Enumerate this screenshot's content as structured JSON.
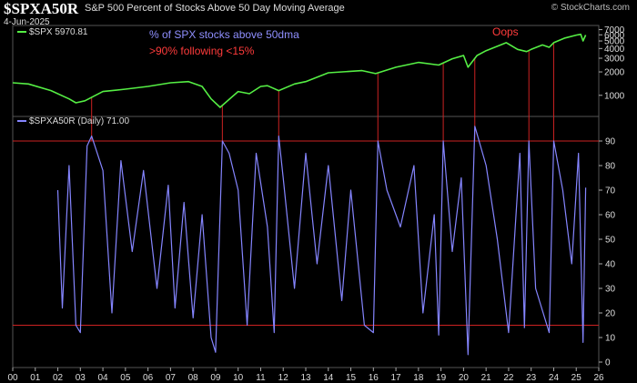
{
  "header": {
    "symbol": "$SPXA50R",
    "description": "S&P 500 Percent of Stocks Above 50 Day Moving Average",
    "date": "4-Jun-2025",
    "watermark": "© StockCharts.com"
  },
  "annotations": {
    "blue": "% of SPX stocks above 50dma",
    "red": ">90% following <15%",
    "oops": "Oops"
  },
  "chart_data": [
    {
      "type": "line",
      "panel": "top",
      "legend": "$SPX 5970.81",
      "color": "#55ee44",
      "y_scale": "log",
      "yticks": [
        1000,
        2000,
        3000,
        4000,
        5000,
        6000,
        7000
      ],
      "ytick_labels": [
        "1000",
        "2000",
        "3000",
        "4000",
        "5000",
        "6000",
        "7000"
      ],
      "x": [
        2000.0,
        2000.7,
        2001.7,
        2002.5,
        2002.8,
        2003.2,
        2004.0,
        2005.0,
        2006.0,
        2007.0,
        2007.8,
        2008.4,
        2008.8,
        2009.2,
        2010.0,
        2010.5,
        2011.0,
        2011.3,
        2011.8,
        2012.5,
        2013.0,
        2014.0,
        2015.5,
        2016.1,
        2017.0,
        2018.0,
        2018.9,
        2019.5,
        2020.0,
        2020.2,
        2020.6,
        2021.0,
        2021.9,
        2022.4,
        2022.8,
        2023.0,
        2023.5,
        2023.8,
        2024.0,
        2024.5,
        2025.0,
        2025.2,
        2025.3,
        2025.42
      ],
      "y": [
        1450,
        1400,
        1150,
        900,
        800,
        850,
        1120,
        1200,
        1300,
        1450,
        1500,
        1300,
        900,
        700,
        1120,
        1050,
        1300,
        1330,
        1150,
        1400,
        1500,
        1950,
        2080,
        1900,
        2300,
        2650,
        2450,
        2950,
        3250,
        2300,
        3250,
        3750,
        4750,
        3900,
        3650,
        3900,
        4450,
        4150,
        4750,
        5450,
        5950,
        6100,
        5000,
        5970
      ]
    },
    {
      "type": "line",
      "panel": "bottom",
      "legend": "$SPXA50R (Daily) 71.00",
      "color": "#8585ff",
      "ylim": [
        0,
        100
      ],
      "yticks": [
        0,
        10,
        20,
        30,
        40,
        50,
        60,
        70,
        80,
        90
      ],
      "ytick_labels": [
        "0",
        "10",
        "20",
        "30",
        "40",
        "50",
        "60",
        "70",
        "80",
        "90"
      ],
      "reference_lines": [
        90,
        15
      ],
      "reference_line_color": "#cc2222",
      "xlim": [
        2000,
        2026
      ],
      "xtick_labels": [
        "00",
        "01",
        "02",
        "03",
        "04",
        "05",
        "06",
        "07",
        "08",
        "09",
        "10",
        "11",
        "12",
        "13",
        "14",
        "15",
        "16",
        "17",
        "18",
        "19",
        "20",
        "21",
        "22",
        "23",
        "24",
        "25",
        "26"
      ],
      "x": [
        2002.0,
        2002.2,
        2002.5,
        2002.8,
        2003.0,
        2003.3,
        2003.5,
        2004.0,
        2004.4,
        2004.8,
        2005.3,
        2005.8,
        2006.4,
        2006.9,
        2007.2,
        2007.6,
        2008.0,
        2008.4,
        2008.8,
        2009.0,
        2009.3,
        2009.6,
        2010.0,
        2010.4,
        2010.8,
        2011.3,
        2011.6,
        2011.8,
        2012.0,
        2012.5,
        2013.0,
        2013.5,
        2014.0,
        2014.6,
        2015.0,
        2015.6,
        2016.0,
        2016.2,
        2016.6,
        2017.2,
        2017.8,
        2018.2,
        2018.7,
        2018.9,
        2019.1,
        2019.5,
        2019.9,
        2020.2,
        2020.5,
        2021.0,
        2021.5,
        2022.0,
        2022.5,
        2022.7,
        2022.9,
        2023.2,
        2023.8,
        2024.0,
        2024.4,
        2024.8,
        2025.1,
        2025.3,
        2025.42
      ],
      "y": [
        70,
        22,
        80,
        15,
        12,
        88,
        92,
        78,
        20,
        82,
        45,
        78,
        30,
        72,
        22,
        65,
        18,
        60,
        10,
        4,
        90,
        85,
        70,
        15,
        85,
        55,
        12,
        92,
        75,
        30,
        85,
        40,
        80,
        25,
        70,
        15,
        12,
        90,
        70,
        55,
        80,
        20,
        60,
        11,
        90,
        45,
        75,
        3,
        96,
        80,
        50,
        12,
        85,
        14,
        90,
        30,
        12,
        90,
        70,
        40,
        85,
        8,
        71
      ]
    }
  ]
}
